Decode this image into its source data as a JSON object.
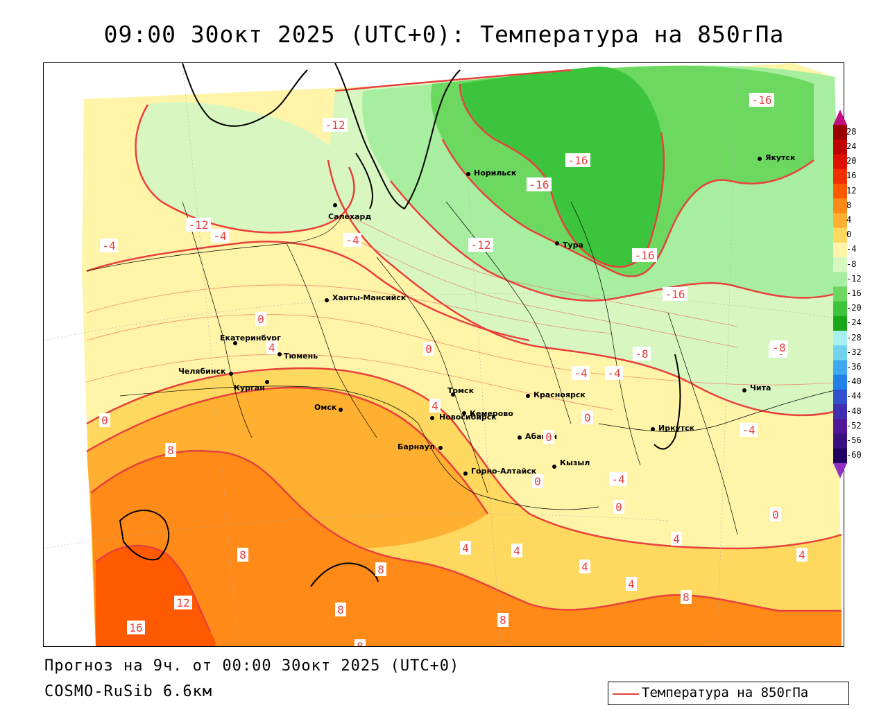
{
  "title": "09:00 30окт 2025 (UTC+0): Температура на 850гПа",
  "footer": {
    "forecast": "Прогноз на 9ч. от 00:00 30окт 2025 (UTC+0)",
    "model": "COSMO-RuSib 6.6км"
  },
  "legend": {
    "label": "Температура на 850гПа",
    "color": "#e8403c"
  },
  "colorbar": {
    "ticks": [
      "28",
      "24",
      "20",
      "16",
      "12",
      "8",
      "4",
      "0",
      "-4",
      "-8",
      "-12",
      "-16",
      "-20",
      "-24",
      "-28",
      "-32",
      "-36",
      "-40",
      "-44",
      "-48",
      "-52",
      "-56",
      "-60"
    ],
    "colors": [
      "#9a0000",
      "#c00000",
      "#e01000",
      "#f03000",
      "#ff5a00",
      "#ff8a18",
      "#ffb030",
      "#ffd860",
      "#fff4a8",
      "#d8f7c0",
      "#a8eea0",
      "#6cd860",
      "#3cc43c",
      "#1aa81a",
      "#a8f0f0",
      "#70d4f0",
      "#40a8f0",
      "#2080e8",
      "#3050d0",
      "#4030b0",
      "#501898",
      "#3a1080",
      "#200060"
    ]
  },
  "cities": [
    {
      "name": "Норильск"
    },
    {
      "name": "Якутск"
    },
    {
      "name": "Салехард"
    },
    {
      "name": "Тура"
    },
    {
      "name": "Ханты-Мансийск"
    },
    {
      "name": "Екатеринбург"
    },
    {
      "name": "Тюмень"
    },
    {
      "name": "Челябинск"
    },
    {
      "name": "Курган"
    },
    {
      "name": "Омск"
    },
    {
      "name": "Новосибирск"
    },
    {
      "name": "Томск"
    },
    {
      "name": "Кемерово"
    },
    {
      "name": "Красноярск"
    },
    {
      "name": "Абакан"
    },
    {
      "name": "Барнаул"
    },
    {
      "name": "Горно-Алтайск"
    },
    {
      "name": "Кызыл"
    },
    {
      "name": "Иркутск"
    },
    {
      "name": "Чита"
    }
  ],
  "isotherm_labels": [
    "-16",
    "-12",
    "-8",
    "-16",
    "-16",
    "-16",
    "-12",
    "-16",
    "-12",
    "-4",
    "-4",
    "-4",
    "-4",
    "0",
    "4",
    "0",
    "0",
    "4",
    "-8",
    "-8",
    "-4",
    "0",
    "0",
    "-4",
    "0",
    "0",
    "4",
    "8",
    "8",
    "8",
    "4",
    "4",
    "4",
    "0",
    "4",
    "4",
    "8",
    "8",
    "12",
    "16",
    "8",
    "8",
    "-4"
  ]
}
